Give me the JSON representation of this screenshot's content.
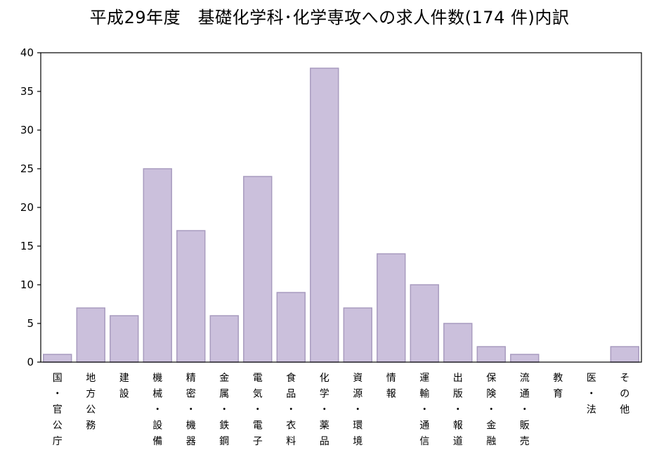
{
  "chart_data": {
    "type": "bar",
    "title": "平成29年度　基礎化学科･化学専攻への求人件数(174 件)内訳",
    "categories": [
      [
        "国",
        "・",
        "官",
        "公",
        "庁"
      ],
      [
        "地",
        "方",
        "公",
        "務"
      ],
      [
        "建",
        "設"
      ],
      [
        "機",
        "械",
        "・",
        "設",
        "備"
      ],
      [
        "精",
        "密",
        "・",
        "機",
        "器"
      ],
      [
        "金",
        "属",
        "・",
        "鉄",
        "鋼"
      ],
      [
        "電",
        "気",
        "・",
        "電",
        "子"
      ],
      [
        "食",
        "品",
        "・",
        "衣",
        "料"
      ],
      [
        "化",
        "学",
        "・",
        "薬",
        "品"
      ],
      [
        "資",
        "源",
        "・",
        "環",
        "境"
      ],
      [
        "情",
        "報"
      ],
      [
        "運",
        "輸",
        "・",
        "通",
        "信"
      ],
      [
        "出",
        "版",
        "・",
        "報",
        "道"
      ],
      [
        "保",
        "険",
        "・",
        "金",
        "融"
      ],
      [
        "流",
        "通",
        "・",
        "販",
        "売"
      ],
      [
        "教",
        "育"
      ],
      [
        "医",
        "・",
        "法"
      ],
      [
        "そ",
        "の",
        "他"
      ]
    ],
    "values": [
      1,
      7,
      6,
      25,
      17,
      6,
      24,
      9,
      38,
      7,
      14,
      10,
      5,
      2,
      1,
      0,
      0,
      2
    ],
    "ylim": [
      0,
      40
    ],
    "yticks": [
      "0",
      "5",
      "10",
      "15",
      "20",
      "25",
      "30",
      "35",
      "40"
    ],
    "xlabel": "",
    "ylabel": "",
    "grid": false,
    "legend": "none",
    "colors": {
      "bar_fill": "#cbc0dc",
      "bar_stroke": "#a89bbf",
      "axis": "#000000",
      "text": "#000000"
    }
  }
}
